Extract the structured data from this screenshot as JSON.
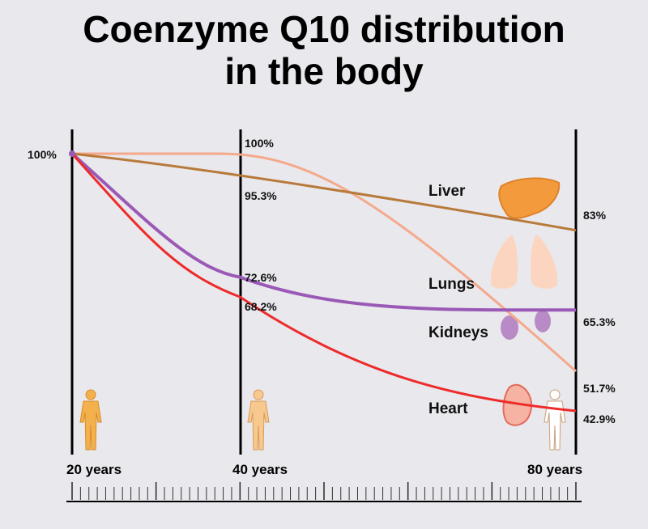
{
  "title_line1": "Coenzyme Q10 distribution",
  "title_line2": "in the body",
  "chart_data": {
    "type": "line",
    "title": "Coenzyme Q10 distribution in the body",
    "x_labels": [
      "20 years",
      "40 years",
      "80 years"
    ],
    "x": [
      20,
      40,
      80
    ],
    "ylim": [
      40,
      100
    ],
    "series": [
      {
        "name": "Liver",
        "color": "#b87a3a",
        "values": [
          100,
          95.3,
          83
        ]
      },
      {
        "name": "Lungs",
        "color": "#f4a98a",
        "values": [
          100,
          100,
          51.7
        ]
      },
      {
        "name": "Kidneys",
        "color": "#9b59b6",
        "values": [
          100,
          72.6,
          65.3
        ]
      },
      {
        "name": "Heart",
        "color": "#ee2b2b",
        "values": [
          100,
          68.2,
          42.9
        ]
      }
    ],
    "start_label": "100%",
    "labels_40": {
      "lungs": "100%",
      "liver": "95.3%",
      "kidneys": "72.6%",
      "heart": "68.2%"
    },
    "labels_80": {
      "liver": "83%",
      "kidneys": "65.3%",
      "lungs": "51.7%",
      "heart": "42.9%"
    }
  }
}
